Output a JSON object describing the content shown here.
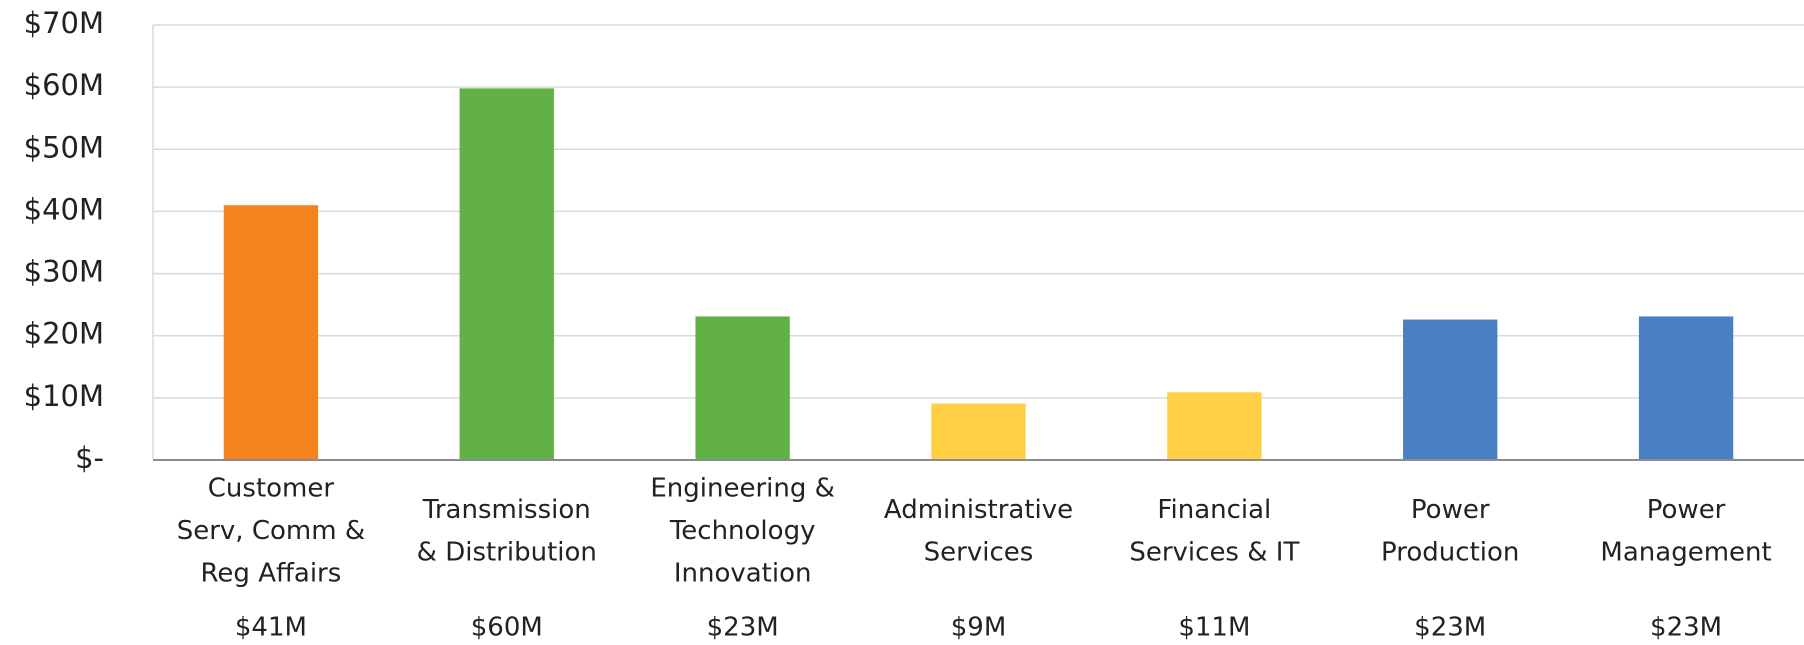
{
  "chart_data": {
    "type": "bar",
    "categories": [
      "Customer\nServ, Comm &\nReg Affairs",
      "Transmission\n& Distribution",
      "Engineering &\nTechnology\nInnovation",
      "Administrative\nServices",
      "Financial\nServices & IT",
      "Power\nProduction",
      "Power\nManagement"
    ],
    "values": [
      41,
      59.8,
      23.1,
      9.1,
      10.9,
      22.6,
      23.1
    ],
    "value_labels": [
      "$41M",
      "$60M",
      "$23M",
      "$9M",
      "$11M",
      "$23M",
      "$23M"
    ],
    "colors": [
      "#f5841f",
      "#62b146",
      "#62b146",
      "#ffcf44",
      "#ffcf44",
      "#4a7fc1",
      "#4a7fc1"
    ],
    "ylim": [
      0,
      70
    ],
    "yticks": [
      {
        "value": 0,
        "label": "$-"
      },
      {
        "value": 10,
        "label": "$10M"
      },
      {
        "value": 20,
        "label": "$20M"
      },
      {
        "value": 30,
        "label": "$30M"
      },
      {
        "value": 40,
        "label": "$40M"
      },
      {
        "value": 50,
        "label": "$50M"
      },
      {
        "value": 60,
        "label": "$60M"
      },
      {
        "value": 70,
        "label": "$70M"
      }
    ],
    "grid": true
  }
}
